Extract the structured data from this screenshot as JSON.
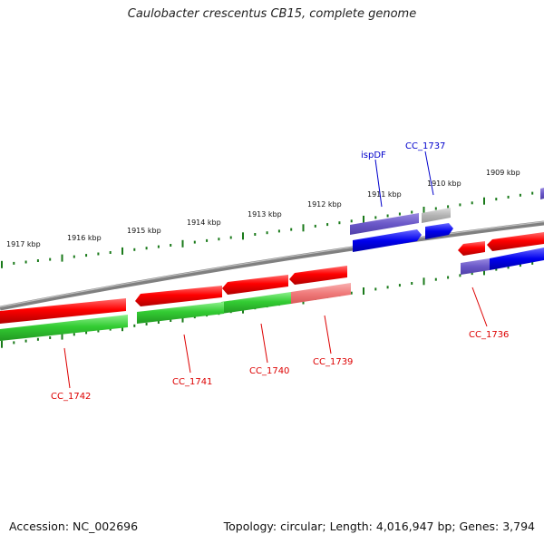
{
  "title": "Caulobacter crescentus CB15, complete genome",
  "footer": {
    "accession": "Accession: NC_002696",
    "summary": "Topology: circular; Length: 4,016,947 bp; Genes: 3,794"
  },
  "map": {
    "kbp_labels": [
      "1917 kbp",
      "1916 kbp",
      "1915 kbp",
      "1914 kbp",
      "1913 kbp",
      "1912 kbp",
      "1911 kbp",
      "1910 kbp",
      "1909 kbp"
    ],
    "gene_labels": [
      {
        "id": "ispDF",
        "color": "#0000cc"
      },
      {
        "id": "CC_1737",
        "color": "#0000cc"
      },
      {
        "id": "CC_1736",
        "color": "#dd0000"
      },
      {
        "id": "CC_1739",
        "color": "#dd0000"
      },
      {
        "id": "CC_1740",
        "color": "#dd0000"
      },
      {
        "id": "CC_1741",
        "color": "#dd0000"
      },
      {
        "id": "CC_1742",
        "color": "#dd0000"
      }
    ]
  },
  "colors": {
    "forward_cds": "#0000ee",
    "reverse_cds": "#ee0000",
    "rna_like": "#33cc33",
    "tick": "#1a7a1a",
    "backbone": "#888888"
  }
}
